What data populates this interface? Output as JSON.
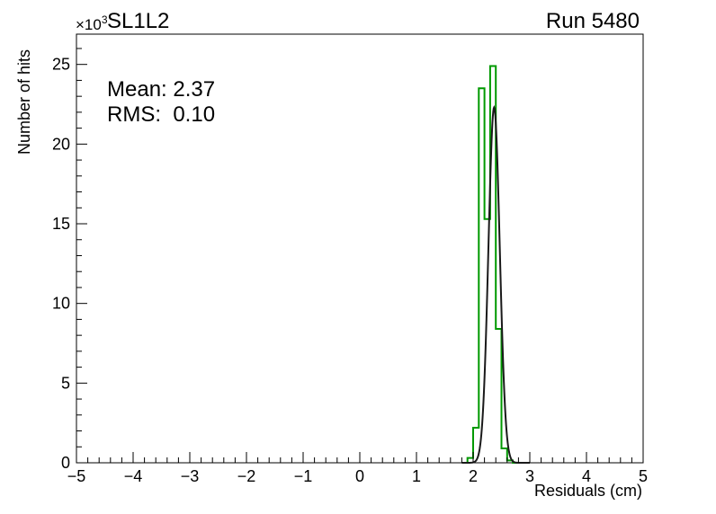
{
  "header": {
    "title": "SL1L2",
    "run_label": "Run 5480"
  },
  "stats": {
    "mean": "Mean: 2.37",
    "rms": "RMS:  0.10"
  },
  "axes": {
    "y_label": "Number of hits",
    "x_label": "Residuals (cm)",
    "exponent_base": "×10",
    "exponent_power": "3"
  },
  "chart_data": {
    "type": "bar",
    "title": "SL1L2",
    "annotation": "Run 5480",
    "xlabel": "Residuals (cm)",
    "ylabel": "Number of hits",
    "y_scale_label": "×10^3",
    "xlim": [
      -5,
      5
    ],
    "ylim": [
      0,
      26.9
    ],
    "grid": false,
    "x_major_ticks": [
      -5,
      -4,
      -3,
      -2,
      -1,
      0,
      1,
      2,
      3,
      4,
      5
    ],
    "x_minor_step": 0.2,
    "y_major_ticks": [
      0,
      5,
      10,
      15,
      20,
      25
    ],
    "y_minor_step": 1,
    "histogram": {
      "name": "residuals-histogram",
      "color": "#009900",
      "units": "10^3 hits",
      "bin_edges": [
        1.9,
        2.0,
        2.1,
        2.2,
        2.3,
        2.4,
        2.5,
        2.6,
        2.7,
        2.8
      ],
      "counts": [
        0.3,
        2.2,
        23.5,
        15.3,
        24.9,
        8.4,
        0.9,
        0.15,
        0
      ]
    },
    "fit": {
      "name": "gaussian-fit",
      "color": "#1a1a1a",
      "mean": 2.37,
      "rms": 0.1,
      "amplitude": 22.3,
      "range": [
        1.8,
        3.0
      ]
    }
  }
}
